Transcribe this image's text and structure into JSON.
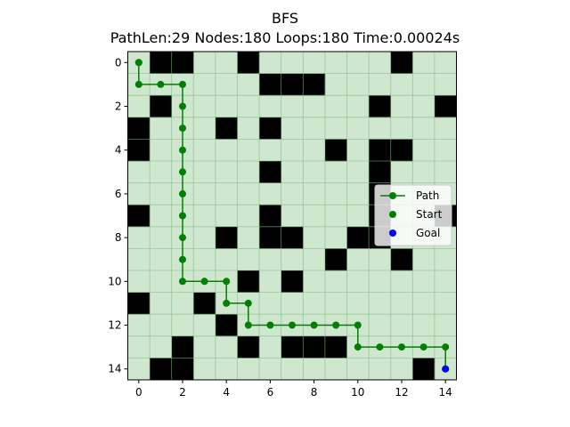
{
  "chart_data": {
    "type": "heatmap",
    "title": "BFS",
    "subtitle": "PathLen:29 Nodes:180 Loops:180 Time:0.00024s",
    "grid_size": [
      15,
      15
    ],
    "xlim": [
      -0.5,
      14.5
    ],
    "ylim": [
      14.5,
      -0.5
    ],
    "xticks": [
      0,
      2,
      4,
      6,
      8,
      10,
      12,
      14
    ],
    "yticks": [
      0,
      2,
      4,
      6,
      8,
      10,
      12,
      14
    ],
    "grid": true,
    "legend_position": "center-right",
    "colors": {
      "free": "#cfe6cf",
      "wall": "#000000",
      "grid": "#7fbf7f",
      "path": "#008000",
      "goal": "#0000ff"
    },
    "walls": [
      [
        1,
        0
      ],
      [
        2,
        0
      ],
      [
        5,
        0
      ],
      [
        12,
        0
      ],
      [
        6,
        1
      ],
      [
        7,
        1
      ],
      [
        8,
        1
      ],
      [
        1,
        2
      ],
      [
        11,
        2
      ],
      [
        14,
        2
      ],
      [
        0,
        3
      ],
      [
        4,
        3
      ],
      [
        6,
        3
      ],
      [
        0,
        4
      ],
      [
        9,
        4
      ],
      [
        11,
        4
      ],
      [
        12,
        4
      ],
      [
        6,
        5
      ],
      [
        11,
        5
      ],
      [
        11,
        6
      ],
      [
        0,
        7
      ],
      [
        6,
        7
      ],
      [
        11,
        7
      ],
      [
        14,
        7
      ],
      [
        4,
        8
      ],
      [
        6,
        8
      ],
      [
        7,
        8
      ],
      [
        10,
        8
      ],
      [
        11,
        8
      ],
      [
        9,
        9
      ],
      [
        12,
        9
      ],
      [
        5,
        10
      ],
      [
        7,
        10
      ],
      [
        0,
        11
      ],
      [
        3,
        11
      ],
      [
        4,
        12
      ],
      [
        2,
        13
      ],
      [
        5,
        13
      ],
      [
        7,
        13
      ],
      [
        8,
        13
      ],
      [
        9,
        13
      ],
      [
        1,
        14
      ],
      [
        2,
        14
      ],
      [
        13,
        14
      ]
    ],
    "legend_covers": [
      [
        13,
        7
      ],
      [
        13,
        8
      ]
    ],
    "series": [
      {
        "name": "Path",
        "points": [
          [
            0,
            0
          ],
          [
            0,
            1
          ],
          [
            1,
            1
          ],
          [
            2,
            1
          ],
          [
            2,
            2
          ],
          [
            2,
            3
          ],
          [
            2,
            4
          ],
          [
            2,
            5
          ],
          [
            2,
            6
          ],
          [
            2,
            7
          ],
          [
            2,
            8
          ],
          [
            2,
            9
          ],
          [
            2,
            10
          ],
          [
            3,
            10
          ],
          [
            4,
            10
          ],
          [
            4,
            11
          ],
          [
            5,
            11
          ],
          [
            5,
            12
          ],
          [
            6,
            12
          ],
          [
            7,
            12
          ],
          [
            8,
            12
          ],
          [
            9,
            12
          ],
          [
            10,
            12
          ],
          [
            10,
            13
          ],
          [
            11,
            13
          ],
          [
            12,
            13
          ],
          [
            13,
            13
          ],
          [
            14,
            13
          ],
          [
            14,
            14
          ]
        ]
      },
      {
        "name": "Start",
        "points": [
          [
            0,
            0
          ]
        ]
      },
      {
        "name": "Goal",
        "points": [
          [
            14,
            14
          ]
        ]
      }
    ]
  }
}
